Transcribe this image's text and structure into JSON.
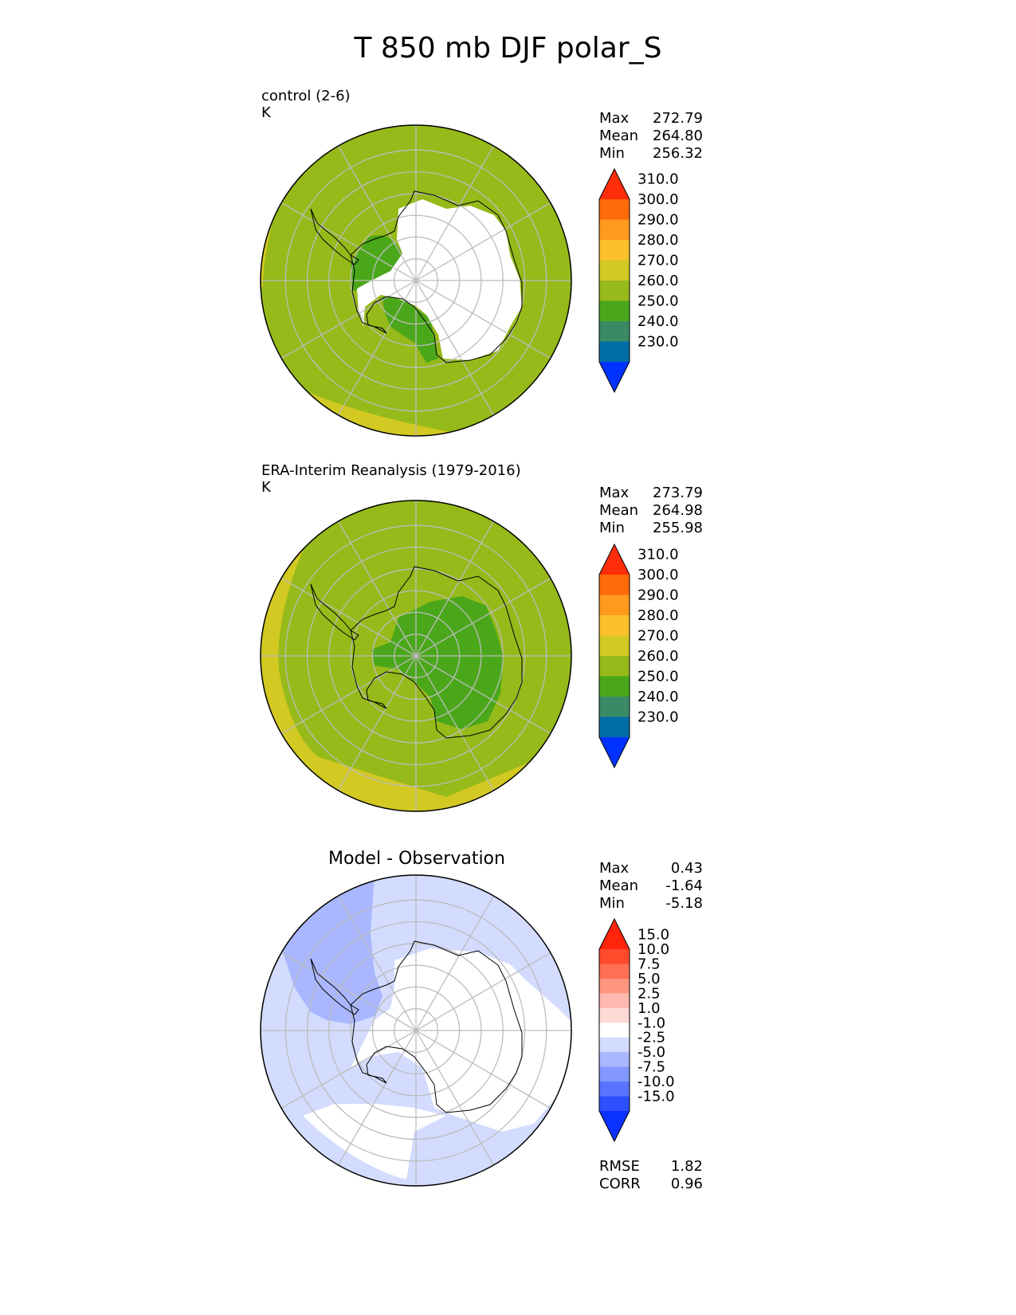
{
  "title": "T 850 mb DJF polar_S",
  "colors": {
    "lev_cmap": [
      "#0033ff",
      "#006ea6",
      "#3a8b64",
      "#4aa71a",
      "#96ba19",
      "#d2c922",
      "#fbc12b",
      "#ff9a1d",
      "#ff6a0a",
      "#ff2d0a"
    ],
    "diff_cmap": [
      "#0a31ff",
      "#2c4fff",
      "#5a73ff",
      "#8297ff",
      "#a8b7ff",
      "#d3dcff",
      "#ffffff",
      "#ffd9d5",
      "#ffb9ae",
      "#ff947f",
      "#ff6f53",
      "#ff4a2c",
      "#ff250a"
    ],
    "ice": "#ffffff",
    "coast": "#000000",
    "grid": "#bcbcbc"
  },
  "chart_data": [
    {
      "type": "heatmap",
      "projection": "south-polar-stereographic",
      "title_left": "control (2-6)",
      "units": "K",
      "stats": [
        {
          "label": "Max",
          "value": "272.79"
        },
        {
          "label": "Mean",
          "value": "264.80"
        },
        {
          "label": "Min",
          "value": "256.32"
        }
      ],
      "colorbar": {
        "extend": "both",
        "levels": [
          230,
          240,
          250,
          260,
          270,
          280,
          290,
          300,
          310
        ],
        "tick_labels": [
          "230.0",
          "240.0",
          "250.0",
          "260.0",
          "270.0",
          "280.0",
          "290.0",
          "300.0",
          "310.0"
        ]
      },
      "dominant_field_value": 265,
      "regional_values": [
        {
          "region": "outer-ring-pacific",
          "value": 272
        },
        {
          "region": "antarctic-coast",
          "value": 257
        },
        {
          "region": "antarctic-interior",
          "value": "masked"
        }
      ]
    },
    {
      "type": "heatmap",
      "projection": "south-polar-stereographic",
      "title_left": "ERA-Interim Reanalysis (1979-2016)",
      "units": "K",
      "stats": [
        {
          "label": "Max",
          "value": "273.79"
        },
        {
          "label": "Mean",
          "value": "264.98"
        },
        {
          "label": "Min",
          "value": "255.98"
        }
      ],
      "colorbar": {
        "extend": "both",
        "levels": [
          230,
          240,
          250,
          260,
          270,
          280,
          290,
          300,
          310
        ],
        "tick_labels": [
          "230.0",
          "240.0",
          "250.0",
          "260.0",
          "270.0",
          "280.0",
          "290.0",
          "300.0",
          "310.0"
        ]
      },
      "dominant_field_value": 265,
      "regional_values": [
        {
          "region": "outer-ring-pacific",
          "value": 273
        },
        {
          "region": "antarctic-interior",
          "value": 257
        }
      ]
    },
    {
      "type": "heatmap",
      "projection": "south-polar-stereographic",
      "title_center": "Model - Observation",
      "stats": [
        {
          "label": "Max",
          "value": "0.43"
        },
        {
          "label": "Mean",
          "value": "-1.64"
        },
        {
          "label": "Min",
          "value": "-5.18"
        }
      ],
      "metrics": [
        {
          "label": "RMSE",
          "value": "1.82"
        },
        {
          "label": "CORR",
          "value": "0.96"
        }
      ],
      "colorbar": {
        "extend": "both",
        "levels": [
          -15,
          -10,
          -7.5,
          -5,
          -2.5,
          -1,
          1,
          2.5,
          5,
          7.5,
          10,
          15
        ],
        "tick_labels": [
          "-15.0",
          "-10.0",
          "-7.5",
          "-5.0",
          "-2.5",
          "-1.0",
          "1.0",
          "2.5",
          "5.0",
          "7.5",
          "10.0",
          "15.0"
        ]
      },
      "dominant_field_value": -1.5,
      "regional_values": [
        {
          "region": "ocean-background",
          "value": -1.5
        },
        {
          "region": "weddell-drake-sector",
          "value": -3.5
        },
        {
          "region": "antarctic-interior",
          "value": 0
        },
        {
          "region": "pacific-sector",
          "value": 0
        }
      ]
    }
  ]
}
